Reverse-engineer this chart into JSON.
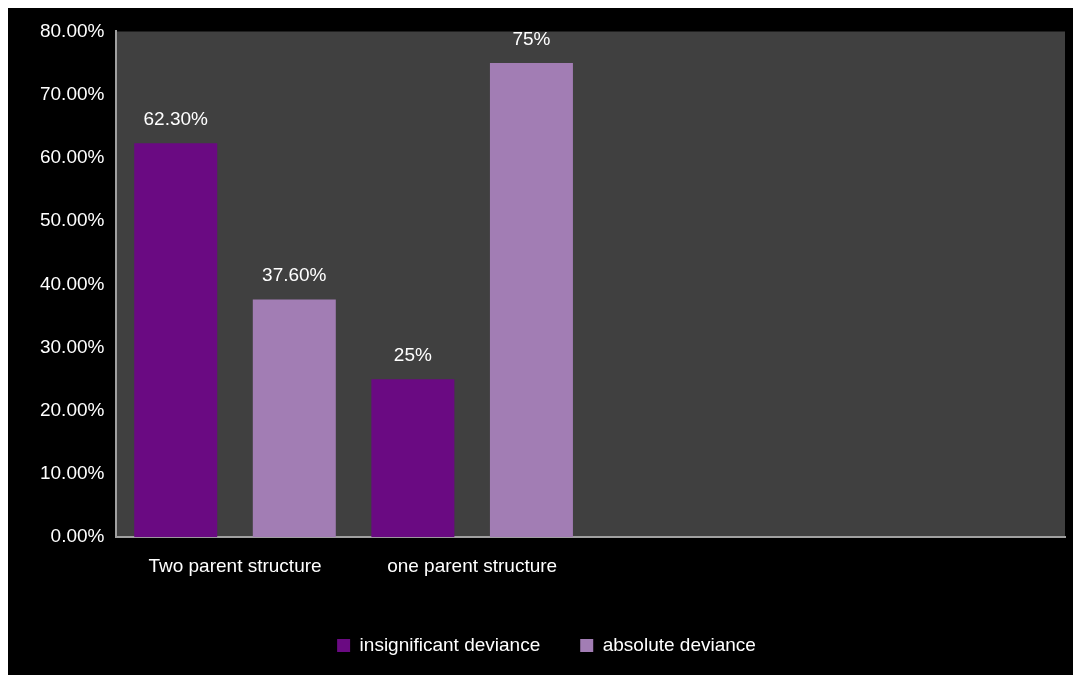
{
  "chart_data": {
    "type": "bar",
    "categories": [
      "Two parent structure",
      "one parent structure",
      null,
      null
    ],
    "series": [
      {
        "name": "insignificant deviance",
        "color": "#6a0a82",
        "values": [
          62.3,
          25,
          null,
          null
        ],
        "value_labels": [
          "62.30%",
          "25%",
          null,
          null
        ]
      },
      {
        "name": "absolute deviance",
        "color": "#a27db4",
        "values": [
          37.6,
          75,
          null,
          null
        ],
        "value_labels": [
          "37.60%",
          "75%",
          null,
          null
        ]
      }
    ],
    "ylim": [
      0,
      80
    ],
    "yticks": [
      {
        "value": 0,
        "label": "0.00%"
      },
      {
        "value": 10,
        "label": "10.00%"
      },
      {
        "value": 20,
        "label": "20.00%"
      },
      {
        "value": 30,
        "label": "30.00%"
      },
      {
        "value": 40,
        "label": "40.00%"
      },
      {
        "value": 50,
        "label": "50.00%"
      },
      {
        "value": 60,
        "label": "60.00%"
      },
      {
        "value": 70,
        "label": "70.00%"
      },
      {
        "value": 80,
        "label": "80.00%"
      }
    ],
    "grid": false,
    "legend": "bottom"
  }
}
